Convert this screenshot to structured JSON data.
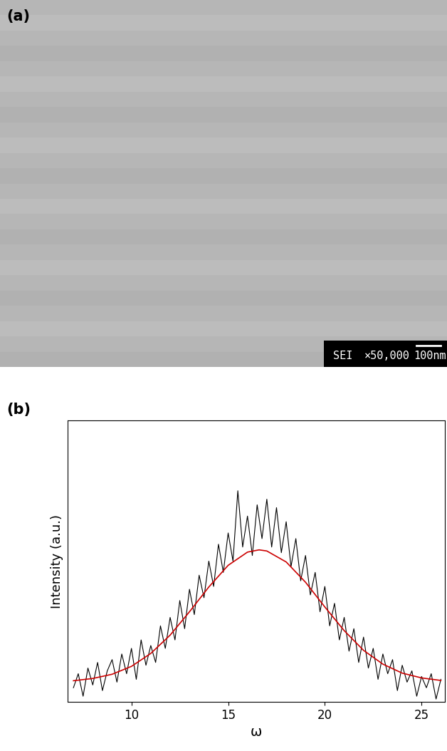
{
  "panel_a": {
    "label": "(a)",
    "info_bar": [
      "SEI",
      "×50,000",
      "100nm"
    ]
  },
  "chart_data": {
    "type": "line",
    "label": "(b)",
    "x_label": "ω",
    "y_label": "Intensity (a.u.)",
    "xlim": [
      6.7,
      26.2
    ],
    "ylim": [
      0,
      1
    ],
    "xticks": [
      10,
      15,
      20,
      25
    ],
    "tick_labels": "x",
    "grid": false,
    "series": [
      {
        "color": "#000000",
        "x": [
          7.0,
          7.25,
          7.5,
          7.75,
          8.0,
          8.25,
          8.5,
          8.75,
          9.0,
          9.25,
          9.5,
          9.75,
          10.0,
          10.25,
          10.5,
          10.75,
          11.0,
          11.25,
          11.5,
          11.75,
          12.0,
          12.25,
          12.5,
          12.75,
          13.0,
          13.25,
          13.5,
          13.75,
          14.0,
          14.25,
          14.5,
          14.75,
          15.0,
          15.25,
          15.5,
          15.75,
          16.0,
          16.25,
          16.5,
          16.75,
          17.0,
          17.25,
          17.5,
          17.75,
          18.0,
          18.25,
          18.5,
          18.75,
          19.0,
          19.25,
          19.5,
          19.75,
          20.0,
          20.25,
          20.5,
          20.75,
          21.0,
          21.25,
          21.5,
          21.75,
          22.0,
          22.25,
          22.5,
          22.75,
          23.0,
          23.25,
          23.5,
          23.75,
          24.0,
          24.25,
          24.5,
          24.75,
          25.0,
          25.25,
          25.5,
          25.75,
          26.0
        ],
        "values": [
          0.05,
          0.1,
          0.02,
          0.12,
          0.06,
          0.14,
          0.04,
          0.11,
          0.15,
          0.07,
          0.17,
          0.1,
          0.19,
          0.08,
          0.22,
          0.13,
          0.2,
          0.14,
          0.27,
          0.19,
          0.3,
          0.22,
          0.36,
          0.26,
          0.4,
          0.31,
          0.45,
          0.37,
          0.5,
          0.41,
          0.56,
          0.46,
          0.6,
          0.5,
          0.75,
          0.55,
          0.66,
          0.52,
          0.7,
          0.58,
          0.72,
          0.55,
          0.69,
          0.53,
          0.64,
          0.48,
          0.58,
          0.43,
          0.52,
          0.38,
          0.46,
          0.32,
          0.41,
          0.27,
          0.35,
          0.22,
          0.3,
          0.18,
          0.26,
          0.14,
          0.23,
          0.12,
          0.19,
          0.08,
          0.17,
          0.1,
          0.15,
          0.04,
          0.13,
          0.07,
          0.11,
          0.02,
          0.09,
          0.05,
          0.1,
          0.01,
          0.08
        ]
      },
      {
        "color": "#cc0000",
        "x": [
          7,
          8,
          9,
          10,
          11,
          12,
          13,
          14,
          15,
          16,
          16.6,
          17,
          18,
          19,
          20,
          21,
          22,
          23,
          24,
          25,
          26
        ],
        "values": [
          0.075,
          0.083,
          0.098,
          0.126,
          0.172,
          0.237,
          0.32,
          0.408,
          0.485,
          0.532,
          0.54,
          0.536,
          0.497,
          0.425,
          0.337,
          0.253,
          0.183,
          0.134,
          0.102,
          0.085,
          0.076
        ]
      }
    ]
  }
}
